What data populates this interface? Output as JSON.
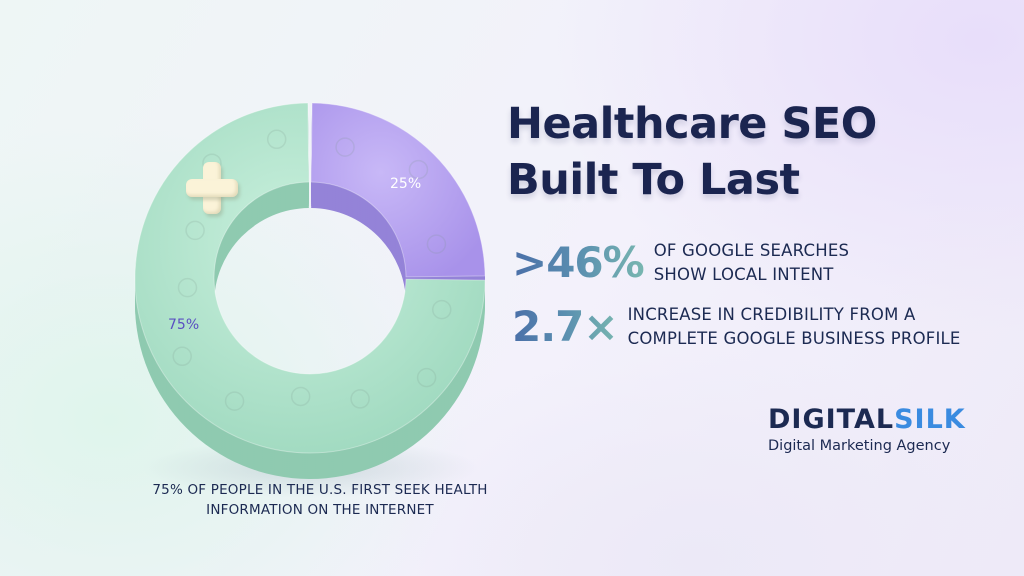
{
  "headline": {
    "line1": "Healthcare SEO",
    "line2": "Built To Last"
  },
  "stats": [
    {
      "value": ">46%",
      "line1": "OF GOOGLE SEARCHES",
      "line2": "SHOW LOCAL INTENT"
    },
    {
      "value": "2.7×",
      "line1": "INCREASE IN CREDIBILITY FROM A",
      "line2": "COMPLETE GOOGLE BUSINESS PROFILE"
    }
  ],
  "donut": {
    "segments": [
      {
        "label": "25%",
        "value": 25,
        "color": "#b7a4f0"
      },
      {
        "label": "75%",
        "value": 75,
        "color": "#b5e6cf"
      }
    ],
    "caption_line1": "75% OF PEOPLE IN THE U.S. FIRST SEEK HEALTH",
    "caption_line2": "INFORMATION ON THE INTERNET",
    "accent_icon": "plus-cross-icon"
  },
  "logo": {
    "word_a": "DIGITAL",
    "word_b": "SILK",
    "tagline": "Digital Marketing Agency",
    "color_dark": "#1c2a52",
    "color_accent": "#3a8be0"
  }
}
